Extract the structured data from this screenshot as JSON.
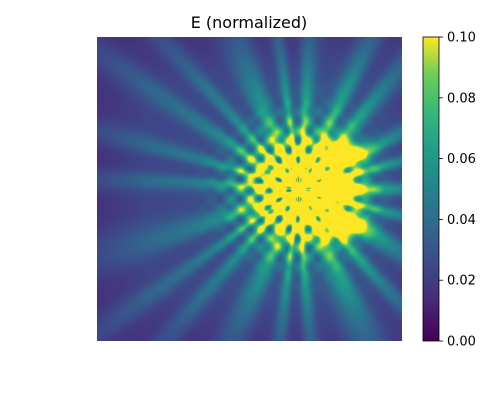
{
  "chart_data": {
    "type": "heatmap",
    "title": "E (normalized)",
    "colormap": "viridis",
    "axes_visible": false,
    "grid": false,
    "colorbar": {
      "position": "right",
      "vmin": 0.0,
      "vmax": 0.1,
      "ticks": [
        0.0,
        0.02,
        0.04,
        0.06,
        0.08,
        0.1
      ],
      "tick_labels": [
        "0.00",
        "0.02",
        "0.04",
        "0.06",
        "0.08",
        "0.10"
      ]
    },
    "field": {
      "description_units": "normalized E, clipped at 0.10",
      "center": [
        0.66,
        0.5
      ],
      "background_level": 0.018,
      "ray_count": 22,
      "saturated_region": "central interference pattern around the source, values >= 0.10"
    }
  }
}
